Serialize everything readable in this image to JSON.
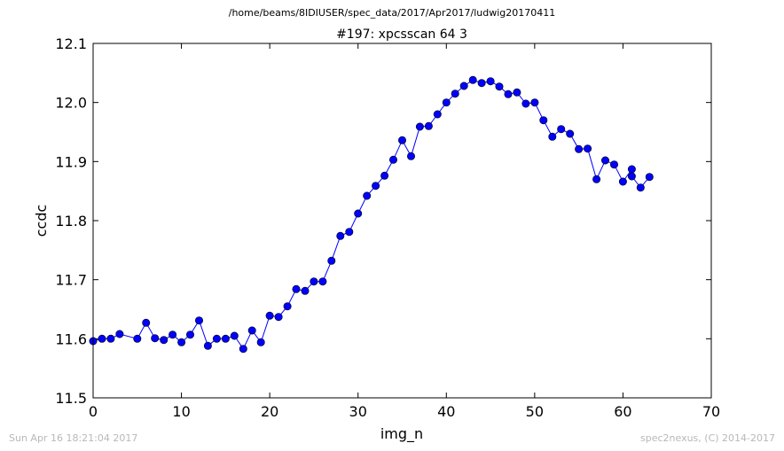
{
  "chart_data": {
    "type": "line",
    "suptitle": "/home/beams/8IDIUSER/spec_data/2017/Apr2017/ludwig20170411",
    "title": "#197: xpcsscan 64 3",
    "xlabel": "img_n",
    "ylabel": "ccdc",
    "xlim": [
      0,
      70
    ],
    "ylim": [
      11.5,
      12.1
    ],
    "xticks": [
      0,
      10,
      20,
      30,
      40,
      50,
      60,
      70
    ],
    "xtick_labels": [
      "0",
      "10",
      "20",
      "30",
      "40",
      "50",
      "60",
      "70"
    ],
    "yticks": [
      11.5,
      11.6,
      11.7,
      11.8,
      11.9,
      12.0,
      12.1
    ],
    "ytick_labels": [
      "11.5",
      "11.6",
      "11.7",
      "11.8",
      "11.9",
      "12.0",
      "12.1"
    ],
    "grid": false,
    "marker": "circle",
    "series_color": "#0000ff",
    "series": [
      {
        "x": [
          0,
          1,
          2,
          3,
          5,
          6,
          7,
          8,
          9,
          10,
          11,
          12,
          13,
          14,
          15,
          16,
          17,
          18,
          19,
          20,
          21,
          22,
          23,
          24,
          25,
          26,
          27,
          28,
          29,
          30,
          31,
          32,
          33,
          34,
          35,
          36,
          37,
          38,
          39,
          40,
          41,
          42,
          43,
          44,
          45,
          46,
          47,
          48,
          49,
          50,
          51,
          52,
          53,
          54,
          55,
          56,
          57,
          58,
          59,
          60,
          61,
          61,
          62,
          63
        ],
        "y": [
          11.596,
          11.6,
          11.6,
          11.608,
          11.6,
          11.627,
          11.601,
          11.598,
          11.607,
          11.594,
          11.607,
          11.631,
          11.588,
          11.6,
          11.6,
          11.605,
          11.583,
          11.614,
          11.594,
          11.639,
          11.637,
          11.655,
          11.684,
          11.681,
          11.697,
          11.697,
          11.732,
          11.774,
          11.781,
          11.812,
          11.842,
          11.859,
          11.876,
          11.903,
          11.936,
          11.909,
          11.959,
          11.96,
          11.98,
          12.0,
          12.015,
          12.028,
          12.038,
          12.033,
          12.036,
          12.027,
          12.014,
          12.017,
          11.998,
          12.0,
          11.97,
          11.942,
          11.955,
          11.947,
          11.921,
          11.922,
          11.87,
          11.902,
          11.895,
          11.866,
          11.887,
          11.875,
          11.856,
          11.874
        ]
      }
    ]
  },
  "footer": {
    "timestamp": "Sun Apr 16 18:21:04 2017",
    "credit": "spec2nexus, (C) 2014-2017"
  }
}
